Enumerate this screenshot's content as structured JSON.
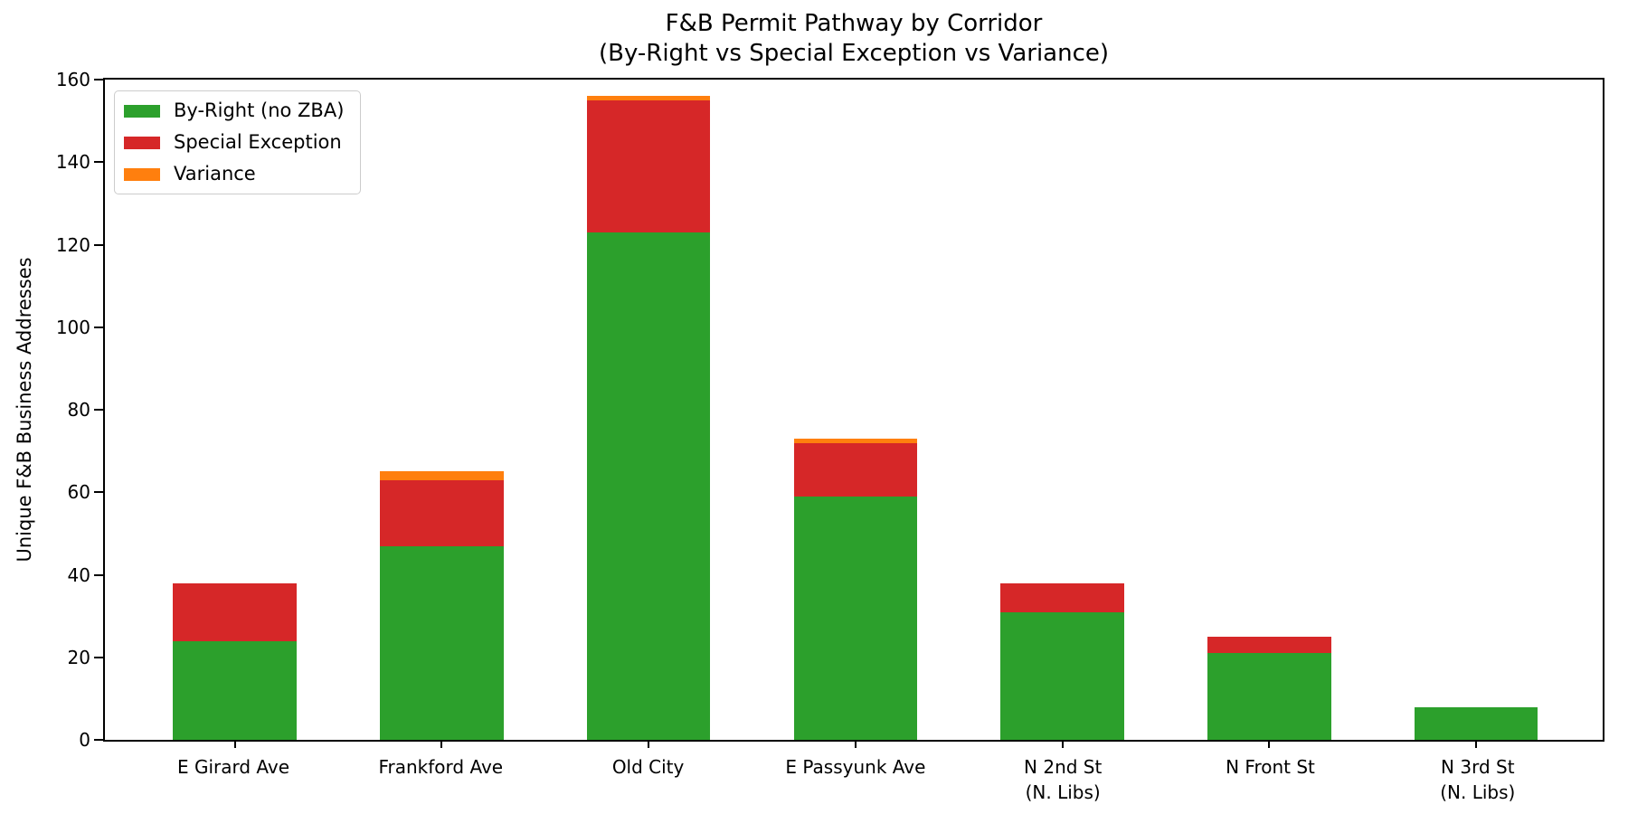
{
  "chart_data": {
    "type": "bar",
    "stacked": true,
    "title": "F&B Permit Pathway by Corridor",
    "subtitle": "(By-Right vs Special Exception vs Variance)",
    "ylabel": "Unique F&B Business Addresses",
    "xlabel": "",
    "categories": [
      "E Girard Ave",
      "Frankford Ave",
      "Old City",
      "E Passyunk Ave",
      "N 2nd St\n(N. Libs)",
      "N Front St",
      "N 3rd St\n(N. Libs)"
    ],
    "series": [
      {
        "name": "By-Right (no ZBA)",
        "color": "#2ca02c",
        "values": [
          24,
          47,
          123,
          59,
          31,
          21,
          8
        ]
      },
      {
        "name": "Special Exception",
        "color": "#d62728",
        "values": [
          14,
          16,
          32,
          13,
          7,
          4,
          0
        ]
      },
      {
        "name": "Variance",
        "color": "#ff7f0e",
        "values": [
          0,
          2,
          1,
          1,
          0,
          0,
          0
        ]
      }
    ],
    "totals": [
      38,
      65,
      156,
      73,
      38,
      25,
      8
    ],
    "ylim": [
      0,
      160
    ],
    "yticks": [
      0,
      20,
      40,
      60,
      80,
      100,
      120,
      140,
      160
    ],
    "legend_position": "upper-left",
    "grid": false,
    "axis_color": "#000000",
    "background_color": "#ffffff"
  }
}
